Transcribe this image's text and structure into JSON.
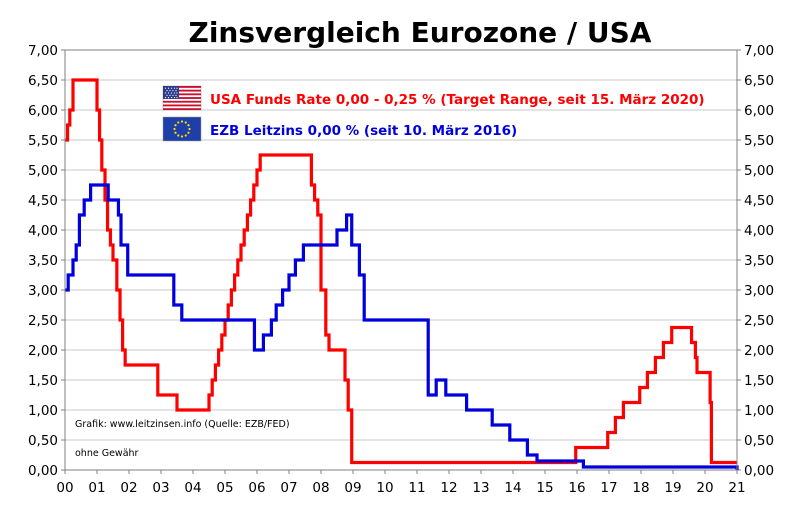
{
  "chart_data": {
    "type": "line",
    "title": "Zinsvergleich Eurozone / USA",
    "xlabel": "",
    "ylabel": "",
    "xlim": [
      2000,
      2021
    ],
    "ylim": [
      0,
      7
    ],
    "grid": true,
    "x_tick_labels": [
      "00",
      "01",
      "02",
      "03",
      "04",
      "05",
      "06",
      "07",
      "08",
      "09",
      "10",
      "11",
      "12",
      "13",
      "14",
      "15",
      "16",
      "17",
      "18",
      "19",
      "20",
      "21"
    ],
    "y_tick_labels": [
      "0,00",
      "0,50",
      "1,00",
      "1,50",
      "2,00",
      "2,50",
      "3,00",
      "3,50",
      "4,00",
      "4,50",
      "5,00",
      "5,50",
      "6,00",
      "6,50",
      "7,00"
    ],
    "series": [
      {
        "name": "USA Funds Rate",
        "legend_label": "USA Funds Rate 0,00 - 0,25 % (Target Range, seit 15. März 2020)",
        "color": "#ff0000",
        "step": true,
        "x": [
          2000.0,
          2000.08,
          2000.15,
          2000.25,
          2000.38,
          2001.0,
          2001.08,
          2001.15,
          2001.25,
          2001.33,
          2001.42,
          2001.5,
          2001.62,
          2001.72,
          2001.8,
          2001.88,
          2001.96,
          2002.9,
          2003.5,
          2004.5,
          2004.6,
          2004.7,
          2004.8,
          2004.9,
          2005.0,
          2005.1,
          2005.2,
          2005.3,
          2005.4,
          2005.5,
          2005.6,
          2005.7,
          2005.8,
          2005.9,
          2006.0,
          2006.1,
          2006.2,
          2006.3,
          2006.4,
          2006.5,
          2007.7,
          2007.8,
          2007.9,
          2008.0,
          2008.05,
          2008.15,
          2008.25,
          2008.3,
          2008.75,
          2008.85,
          2008.96,
          2015.96,
          2016.96,
          2017.2,
          2017.45,
          2017.96,
          2018.2,
          2018.45,
          2018.7,
          2018.96,
          2019.58,
          2019.7,
          2019.75,
          2020.16,
          2020.2,
          2021.0
        ],
        "values": [
          5.5,
          5.75,
          6.0,
          6.5,
          6.5,
          6.0,
          5.5,
          5.0,
          4.5,
          4.0,
          3.75,
          3.5,
          3.0,
          2.5,
          2.0,
          1.75,
          1.75,
          1.25,
          1.0,
          1.25,
          1.5,
          1.75,
          2.0,
          2.25,
          2.5,
          2.75,
          3.0,
          3.25,
          3.5,
          3.75,
          4.0,
          4.25,
          4.5,
          4.75,
          5.0,
          5.25,
          5.25,
          5.25,
          5.25,
          5.25,
          4.75,
          4.5,
          4.25,
          3.0,
          3.0,
          2.25,
          2.0,
          2.0,
          1.5,
          1.0,
          0.125,
          0.375,
          0.625,
          0.875,
          1.125,
          1.375,
          1.625,
          1.875,
          2.125,
          2.375,
          2.125,
          1.875,
          1.625,
          1.125,
          0.125,
          0.125
        ]
      },
      {
        "name": "EZB Leitzins",
        "legend_label": "EZB Leitzins 0,00 %  (seit 10. März 2016)",
        "color": "#0000dd",
        "step": true,
        "x": [
          2000.0,
          2000.1,
          2000.25,
          2000.35,
          2000.45,
          2000.6,
          2000.8,
          2001.35,
          2001.67,
          2001.75,
          2001.85,
          2001.96,
          2003.08,
          2003.4,
          2003.65,
          2005.92,
          2006.2,
          2006.45,
          2006.6,
          2006.8,
          2007.0,
          2007.2,
          2007.45,
          2008.5,
          2008.8,
          2008.96,
          2009.2,
          2009.35,
          2011.35,
          2011.6,
          2011.9,
          2012.55,
          2013.35,
          2013.9,
          2014.45,
          2014.75,
          2016.2,
          2021.0
        ],
        "values": [
          3.0,
          3.25,
          3.5,
          3.75,
          4.25,
          4.5,
          4.75,
          4.5,
          4.25,
          3.75,
          3.75,
          3.25,
          3.25,
          2.75,
          2.5,
          2.0,
          2.25,
          2.5,
          2.75,
          3.0,
          3.25,
          3.5,
          3.75,
          4.0,
          4.25,
          3.75,
          3.25,
          2.5,
          1.25,
          1.5,
          1.25,
          1.0,
          0.75,
          0.5,
          0.25,
          0.15,
          0.05,
          0.0
        ]
      }
    ],
    "annotations": [
      "Grafik: www.leitzinsen.info (Quelle: EZB/FED)",
      "ohne Gewähr"
    ]
  },
  "legend": {
    "usa_flag_icon": "us-flag-icon",
    "eu_flag_icon": "eu-flag-icon"
  }
}
